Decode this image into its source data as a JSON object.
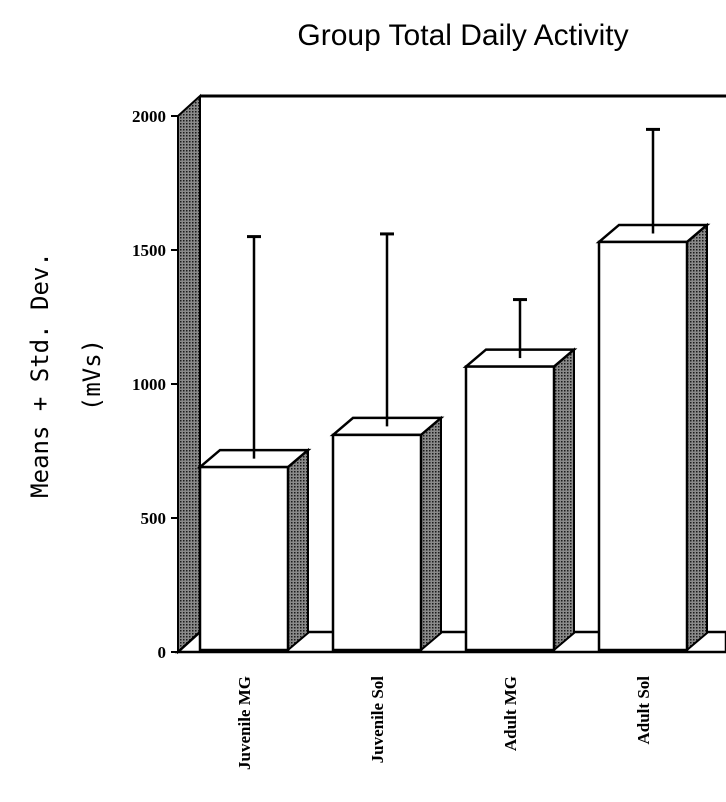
{
  "chart_data": {
    "type": "bar",
    "title": "Group Total Daily Activity",
    "ylabel_line1": "Means + Std. Dev.",
    "ylabel_line2": "(mVs)",
    "xlabel": "",
    "categories": [
      "Juvenile MG",
      "Juvenile Sol",
      "Adult MG",
      "Adult Sol"
    ],
    "series": [
      {
        "values": [
          690,
          810,
          1065,
          1530
        ],
        "error_plus": [
          860,
          750,
          250,
          420
        ]
      }
    ],
    "ylim": [
      0,
      2000
    ],
    "yticks": [
      0,
      500,
      1000,
      1500,
      2000
    ],
    "ytick_labels": [
      "0",
      "500",
      "1000",
      "1500",
      "2000"
    ],
    "style": "3d",
    "grid": false,
    "colors": {
      "bar_face": "#ffffff",
      "bar_side": "#3a3a3a",
      "wall": "#555555",
      "outline": "#000000"
    }
  }
}
